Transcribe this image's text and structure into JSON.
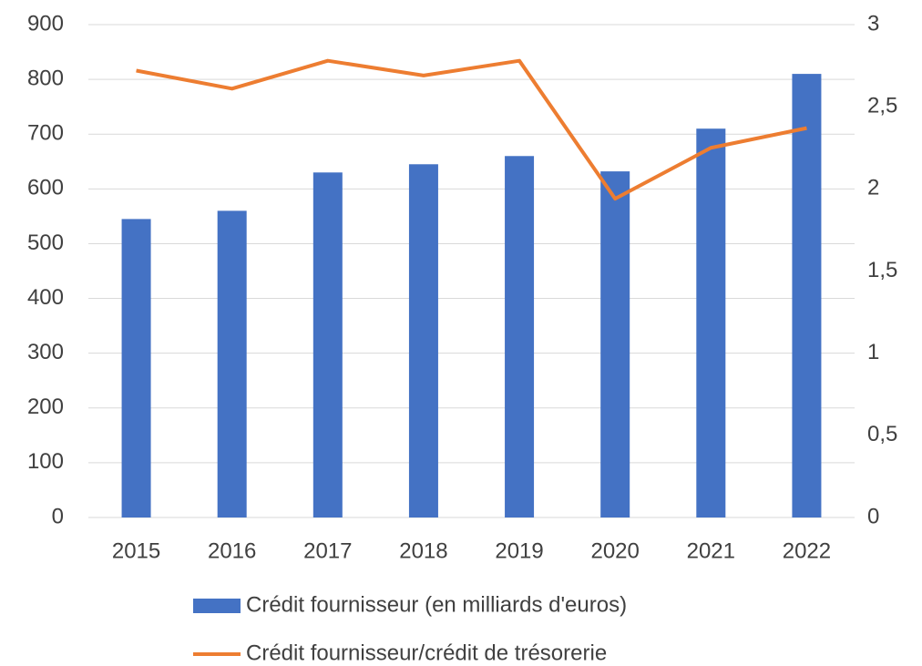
{
  "chart_data": {
    "type": "combo",
    "categories": [
      "2015",
      "2016",
      "2017",
      "2018",
      "2019",
      "2020",
      "2021",
      "2022"
    ],
    "series": [
      {
        "name": "Crédit fournisseur (en milliards d'euros)",
        "type": "bar",
        "color": "#4472c4",
        "values": [
          545,
          560,
          630,
          645,
          660,
          632,
          710,
          810
        ]
      },
      {
        "name": "Crédit fournisseur/crédit de trésorerie",
        "type": "line",
        "color": "#ed7d31",
        "axis": "y2",
        "values": [
          2.72,
          2.61,
          2.78,
          2.69,
          2.78,
          1.94,
          2.25,
          2.37
        ]
      }
    ],
    "ylim": [
      0,
      900
    ],
    "yticks": [
      0,
      100,
      200,
      300,
      400,
      500,
      600,
      700,
      800,
      900
    ],
    "y2lim": [
      0,
      3
    ],
    "y2ticks": [
      0,
      {
        "value": 0.5,
        "label": "0,5"
      },
      1,
      {
        "value": 1.5,
        "label": "1,5"
      },
      2,
      {
        "value": 2.5,
        "label": "2,5"
      },
      3
    ],
    "grid": true,
    "legend": "bottom"
  }
}
